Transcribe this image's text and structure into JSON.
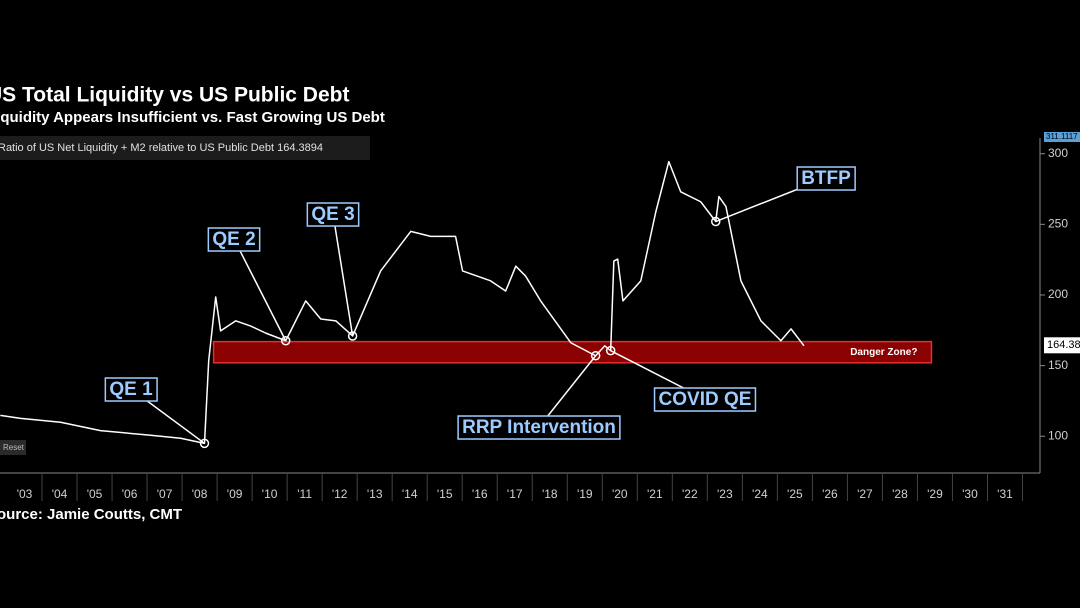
{
  "chart_data": {
    "type": "line",
    "title": "US Total Liquidity vs US Public Debt",
    "subtitle": "Liquidity Appears Insufficient vs. Fast Growing US Debt",
    "source": "Source: Jamie Coutts, CMT",
    "legend_text": "Ratio of US Net Liquidity + M2 relative to US Public Debt 164.3894",
    "last_value": 164.3894,
    "reset_button": "Reset",
    "x": [
      2002.31,
      2002.89,
      2004.03,
      2005.17,
      2006.6,
      2007.46,
      2008.14,
      2008.26,
      2008.46,
      2008.6,
      2009.03,
      2009.46,
      2009.89,
      2010.46,
      2011.03,
      2011.46,
      2011.89,
      2012.37,
      2013.17,
      2014.03,
      2014.6,
      2015.31,
      2015.51,
      2016.31,
      2016.74,
      2017.03,
      2017.31,
      2017.74,
      2018.6,
      2019.31,
      2019.57,
      2019.74,
      2019.83,
      2019.94,
      2020.09,
      2020.6,
      2021.03,
      2021.4,
      2021.74,
      2022.31,
      2022.74,
      2022.83,
      2023.03,
      2023.46,
      2024.03,
      2024.6,
      2024.89,
      2025.26
    ],
    "series": [
      {
        "name": "Ratio of US Net Liquidity + M2 relative to US Public Debt",
        "color": "#ffffff",
        "values": [
          114.8,
          112.7,
          109.9,
          104,
          100.7,
          98.6,
          95,
          153.5,
          198.6,
          174.6,
          181.7,
          178,
          173,
          167.6,
          195.8,
          183,
          181.7,
          171,
          217,
          245,
          241.5,
          241.5,
          217,
          210,
          202.8,
          220.4,
          213.4,
          195.8,
          166.2,
          157,
          164,
          160.6,
          224,
          225.4,
          195.8,
          210,
          259,
          294.4,
          273,
          266,
          252,
          269.7,
          262.7,
          209.9,
          181.7,
          167.6,
          176,
          164
        ]
      }
    ],
    "xlim": [
      2002.3,
      2032
    ],
    "ylim": [
      74,
      311.1117
    ],
    "yticks": [
      100,
      150,
      200,
      250,
      300
    ],
    "xticks": [
      {
        "value": 2003,
        "label": "'03"
      },
      {
        "value": 2004,
        "label": "'04"
      },
      {
        "value": 2005,
        "label": "'05"
      },
      {
        "value": 2006,
        "label": "'06"
      },
      {
        "value": 2007,
        "label": "'07"
      },
      {
        "value": 2008,
        "label": "'08"
      },
      {
        "value": 2009,
        "label": "'09"
      },
      {
        "value": 2010,
        "label": "'10"
      },
      {
        "value": 2011,
        "label": "'11"
      },
      {
        "value": 2012,
        "label": "'12"
      },
      {
        "value": 2013,
        "label": "'13"
      },
      {
        "value": 2014,
        "label": "'14"
      },
      {
        "value": 2015,
        "label": "'15"
      },
      {
        "value": 2016,
        "label": "'16"
      },
      {
        "value": 2017,
        "label": "'17"
      },
      {
        "value": 2018,
        "label": "'18"
      },
      {
        "value": 2019,
        "label": "'19"
      },
      {
        "value": 2020,
        "label": "'20"
      },
      {
        "value": 2021,
        "label": "'21"
      },
      {
        "value": 2022,
        "label": "'22"
      },
      {
        "value": 2023,
        "label": "'23"
      },
      {
        "value": 2024,
        "label": "'24"
      },
      {
        "value": 2025,
        "label": "'25"
      },
      {
        "value": 2026,
        "label": "'26"
      },
      {
        "value": 2027,
        "label": "'27"
      },
      {
        "value": 2028,
        "label": "'28"
      },
      {
        "value": 2029,
        "label": "'29"
      },
      {
        "value": 2030,
        "label": "'30"
      },
      {
        "value": 2031,
        "label": "'31"
      }
    ],
    "band": {
      "label": "Danger Zone?",
      "x": [
        2008.4,
        2028.9
      ],
      "y": [
        152,
        167
      ],
      "color": "#8b0000"
    },
    "annotations": [
      {
        "text": "QE 1",
        "x": 2008.14,
        "y": 95
      },
      {
        "text": "QE 2",
        "x": 2010.46,
        "y": 167.6
      },
      {
        "text": "QE 3",
        "x": 2012.37,
        "y": 171
      },
      {
        "text": "RRP Intervention",
        "x": 2019.31,
        "y": 157
      },
      {
        "text": "COVID QE",
        "x": 2019.74,
        "y": 160.6
      },
      {
        "text": "BTFP",
        "x": 2022.74,
        "y": 252
      }
    ]
  }
}
